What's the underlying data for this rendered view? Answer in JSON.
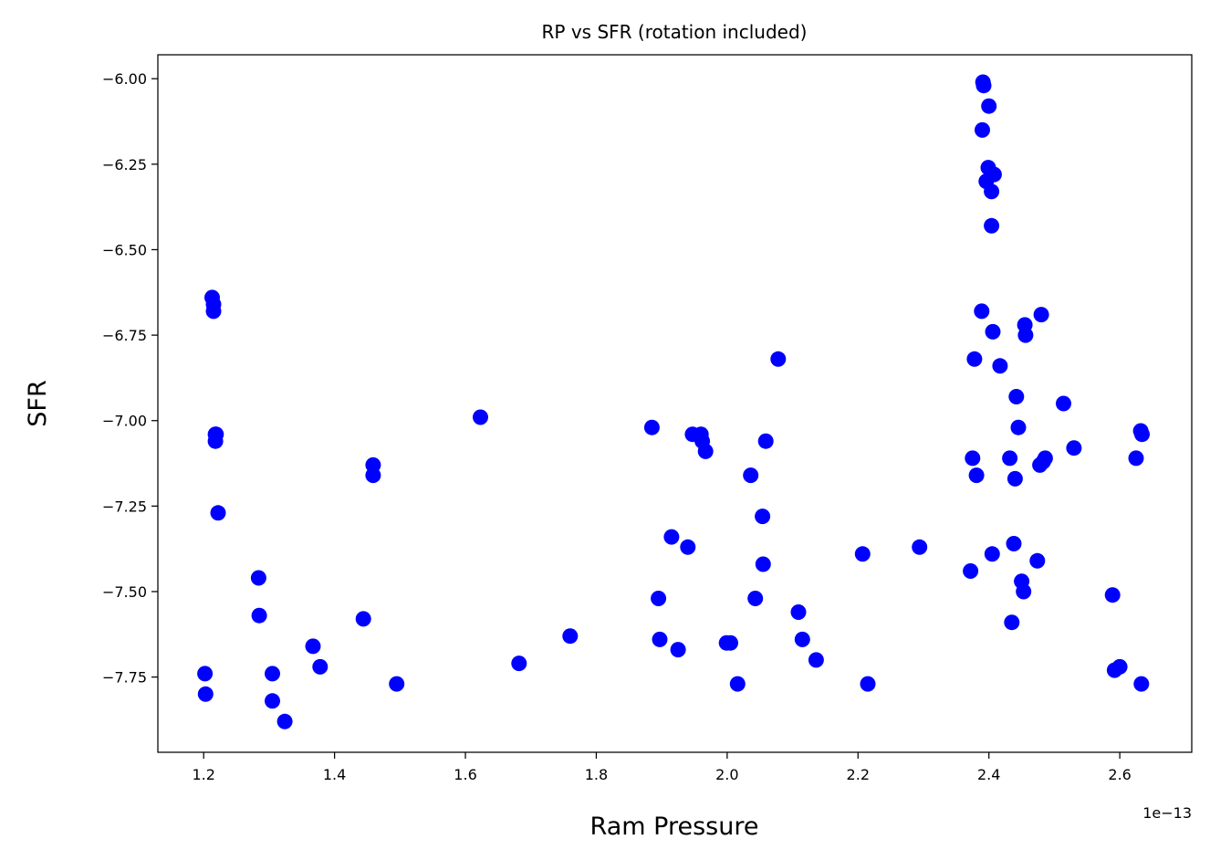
{
  "chart_data": {
    "type": "scatter",
    "title": "RP vs SFR (rotation included)",
    "xlabel": "Ram Pressure",
    "ylabel": "SFR",
    "x_offset_label": "1e−13",
    "xlim": [
      1.13,
      2.71
    ],
    "ylim": [
      -7.97,
      -5.93
    ],
    "xticks": [
      1.2,
      1.4,
      1.6,
      1.8,
      2.0,
      2.2,
      2.4,
      2.6
    ],
    "xtick_labels": [
      "1.2",
      "1.4",
      "1.6",
      "1.8",
      "2.0",
      "2.2",
      "2.4",
      "2.6"
    ],
    "yticks": [
      -6.0,
      -6.25,
      -6.5,
      -6.75,
      -7.0,
      -7.25,
      -7.5,
      -7.75
    ],
    "ytick_labels": [
      "−6.00",
      "−6.25",
      "−6.50",
      "−6.75",
      "−7.00",
      "−7.25",
      "−7.50",
      "−7.75"
    ],
    "grid": false,
    "marker_color": "#0000ff",
    "series": [
      {
        "points": [
          [
            1.213,
            -6.64
          ],
          [
            1.215,
            -6.66
          ],
          [
            1.215,
            -6.68
          ],
          [
            1.218,
            -7.04
          ],
          [
            1.219,
            -7.04
          ],
          [
            1.218,
            -7.06
          ],
          [
            1.222,
            -7.27
          ],
          [
            1.202,
            -7.74
          ],
          [
            1.203,
            -7.8
          ],
          [
            1.284,
            -7.46
          ],
          [
            1.285,
            -7.57
          ],
          [
            1.305,
            -7.74
          ],
          [
            1.305,
            -7.82
          ],
          [
            1.324,
            -7.88
          ],
          [
            1.367,
            -7.66
          ],
          [
            1.378,
            -7.72
          ],
          [
            1.444,
            -7.58
          ],
          [
            1.459,
            -7.13
          ],
          [
            1.459,
            -7.16
          ],
          [
            1.495,
            -7.77
          ],
          [
            1.623,
            -6.99
          ],
          [
            1.682,
            -7.71
          ],
          [
            1.76,
            -7.63
          ],
          [
            1.885,
            -7.02
          ],
          [
            1.895,
            -7.52
          ],
          [
            1.897,
            -7.64
          ],
          [
            1.915,
            -7.34
          ],
          [
            1.925,
            -7.67
          ],
          [
            1.94,
            -7.37
          ],
          [
            1.947,
            -7.04
          ],
          [
            1.96,
            -7.04
          ],
          [
            1.962,
            -7.06
          ],
          [
            1.967,
            -7.09
          ],
          [
            1.999,
            -7.65
          ],
          [
            2.005,
            -7.65
          ],
          [
            2.016,
            -7.77
          ],
          [
            2.036,
            -7.16
          ],
          [
            2.043,
            -7.52
          ],
          [
            2.054,
            -7.28
          ],
          [
            2.055,
            -7.42
          ],
          [
            2.059,
            -7.06
          ],
          [
            2.078,
            -6.82
          ],
          [
            2.109,
            -7.56
          ],
          [
            2.115,
            -7.64
          ],
          [
            2.136,
            -7.7
          ],
          [
            2.207,
            -7.39
          ],
          [
            2.215,
            -7.77
          ],
          [
            2.294,
            -7.37
          ],
          [
            2.372,
            -7.44
          ],
          [
            2.375,
            -7.11
          ],
          [
            2.378,
            -6.82
          ],
          [
            2.381,
            -7.16
          ],
          [
            2.389,
            -6.68
          ],
          [
            2.39,
            -6.15
          ],
          [
            2.391,
            -6.01
          ],
          [
            2.392,
            -6.02
          ],
          [
            2.396,
            -6.3
          ],
          [
            2.399,
            -6.26
          ],
          [
            2.4,
            -6.08
          ],
          [
            2.404,
            -6.33
          ],
          [
            2.404,
            -6.43
          ],
          [
            2.405,
            -7.39
          ],
          [
            2.406,
            -6.74
          ],
          [
            2.408,
            -6.28
          ],
          [
            2.417,
            -6.84
          ],
          [
            2.432,
            -7.11
          ],
          [
            2.435,
            -7.59
          ],
          [
            2.438,
            -7.36
          ],
          [
            2.44,
            -7.17
          ],
          [
            2.442,
            -6.93
          ],
          [
            2.445,
            -7.02
          ],
          [
            2.45,
            -7.47
          ],
          [
            2.453,
            -7.5
          ],
          [
            2.455,
            -6.72
          ],
          [
            2.456,
            -6.75
          ],
          [
            2.474,
            -7.41
          ],
          [
            2.478,
            -7.13
          ],
          [
            2.48,
            -6.69
          ],
          [
            2.483,
            -7.12
          ],
          [
            2.486,
            -7.11
          ],
          [
            2.514,
            -6.95
          ],
          [
            2.53,
            -7.08
          ],
          [
            2.589,
            -7.51
          ],
          [
            2.592,
            -7.73
          ],
          [
            2.6,
            -7.72
          ],
          [
            2.625,
            -7.11
          ],
          [
            2.632,
            -7.03
          ],
          [
            2.634,
            -7.04
          ],
          [
            2.633,
            -7.77
          ]
        ]
      }
    ]
  }
}
